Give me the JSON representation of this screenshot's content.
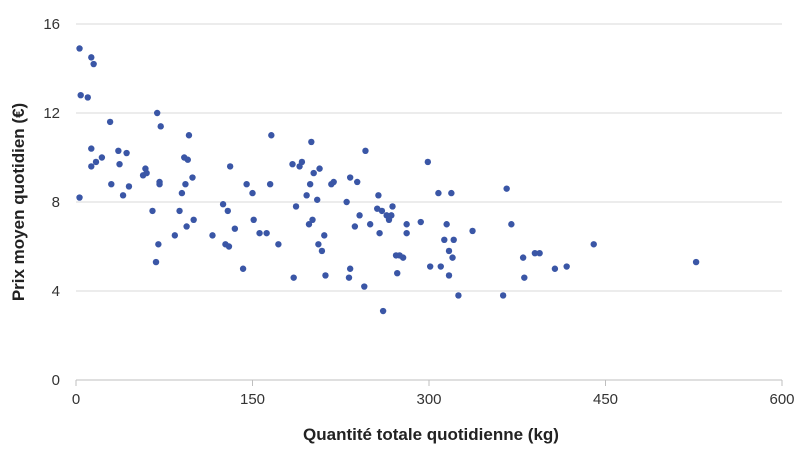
{
  "chart_data": {
    "type": "scatter",
    "xlabel": "Quantité totale quotidienne (kg)",
    "ylabel": "Prix moyen quotidien (€)",
    "xlim": [
      0,
      600
    ],
    "ylim": [
      0,
      16
    ],
    "xticks": [
      0,
      150,
      300,
      450,
      600
    ],
    "yticks": [
      0,
      4,
      8,
      12,
      16
    ],
    "grid": "horizontal",
    "marker_color": "#3a56a6",
    "points": [
      [
        3,
        14.9
      ],
      [
        4,
        12.8
      ],
      [
        3,
        8.2
      ],
      [
        10,
        12.7
      ],
      [
        13,
        14.5
      ],
      [
        15,
        14.2
      ],
      [
        13,
        10.4
      ],
      [
        13,
        9.6
      ],
      [
        17,
        9.8
      ],
      [
        22,
        10.0
      ],
      [
        29,
        11.6
      ],
      [
        30,
        8.8
      ],
      [
        36,
        10.3
      ],
      [
        37,
        9.7
      ],
      [
        40,
        8.3
      ],
      [
        43,
        10.2
      ],
      [
        45,
        8.7
      ],
      [
        57,
        9.2
      ],
      [
        59,
        9.5
      ],
      [
        60,
        9.3
      ],
      [
        65,
        7.6
      ],
      [
        68,
        5.3
      ],
      [
        69,
        12.0
      ],
      [
        70,
        6.1
      ],
      [
        71,
        8.9
      ],
      [
        72,
        11.4
      ],
      [
        71,
        8.8
      ],
      [
        84,
        6.5
      ],
      [
        88,
        7.6
      ],
      [
        90,
        8.4
      ],
      [
        92,
        10.0
      ],
      [
        93,
        8.8
      ],
      [
        94,
        6.9
      ],
      [
        95,
        9.9
      ],
      [
        96,
        11.0
      ],
      [
        99,
        9.1
      ],
      [
        100,
        7.2
      ],
      [
        116,
        6.5
      ],
      [
        125,
        7.9
      ],
      [
        127,
        6.1
      ],
      [
        129,
        7.6
      ],
      [
        130,
        6.0
      ],
      [
        131,
        9.6
      ],
      [
        135,
        6.8
      ],
      [
        142,
        5.0
      ],
      [
        145,
        8.8
      ],
      [
        150,
        8.4
      ],
      [
        151,
        7.2
      ],
      [
        156,
        6.6
      ],
      [
        162,
        6.6
      ],
      [
        165,
        8.8
      ],
      [
        166,
        11.0
      ],
      [
        172,
        6.1
      ],
      [
        184,
        9.7
      ],
      [
        185,
        4.6
      ],
      [
        187,
        7.8
      ],
      [
        190,
        9.6
      ],
      [
        192,
        9.8
      ],
      [
        196,
        8.3
      ],
      [
        198,
        7.0
      ],
      [
        199,
        8.8
      ],
      [
        200,
        10.7
      ],
      [
        201,
        7.2
      ],
      [
        202,
        9.3
      ],
      [
        205,
        8.1
      ],
      [
        206,
        6.1
      ],
      [
        207,
        9.5
      ],
      [
        209,
        5.8
      ],
      [
        211,
        6.5
      ],
      [
        212,
        4.7
      ],
      [
        217,
        8.8
      ],
      [
        219,
        8.9
      ],
      [
        230,
        8.0
      ],
      [
        232,
        4.6
      ],
      [
        233,
        5.0
      ],
      [
        233,
        9.1
      ],
      [
        237,
        6.9
      ],
      [
        239,
        8.9
      ],
      [
        241,
        7.4
      ],
      [
        245,
        4.2
      ],
      [
        246,
        10.3
      ],
      [
        250,
        7.0
      ],
      [
        256,
        7.7
      ],
      [
        257,
        8.3
      ],
      [
        258,
        6.6
      ],
      [
        260,
        7.6
      ],
      [
        261,
        3.1
      ],
      [
        264,
        7.4
      ],
      [
        266,
        7.2
      ],
      [
        268,
        7.4
      ],
      [
        269,
        7.8
      ],
      [
        272,
        5.6
      ],
      [
        273,
        4.8
      ],
      [
        275,
        5.6
      ],
      [
        278,
        5.5
      ],
      [
        281,
        6.6
      ],
      [
        281,
        7.0
      ],
      [
        293,
        7.1
      ],
      [
        299,
        9.8
      ],
      [
        301,
        5.1
      ],
      [
        308,
        8.4
      ],
      [
        310,
        5.1
      ],
      [
        313,
        6.3
      ],
      [
        315,
        7.0
      ],
      [
        317,
        4.7
      ],
      [
        317,
        5.8
      ],
      [
        319,
        8.4
      ],
      [
        320,
        5.5
      ],
      [
        321,
        6.3
      ],
      [
        325,
        3.8
      ],
      [
        337,
        6.7
      ],
      [
        363,
        3.8
      ],
      [
        366,
        8.6
      ],
      [
        370,
        7.0
      ],
      [
        380,
        5.5
      ],
      [
        381,
        4.6
      ],
      [
        390,
        5.7
      ],
      [
        394,
        5.7
      ],
      [
        407,
        5.0
      ],
      [
        417,
        5.1
      ],
      [
        440,
        6.1
      ],
      [
        527,
        5.3
      ]
    ]
  }
}
